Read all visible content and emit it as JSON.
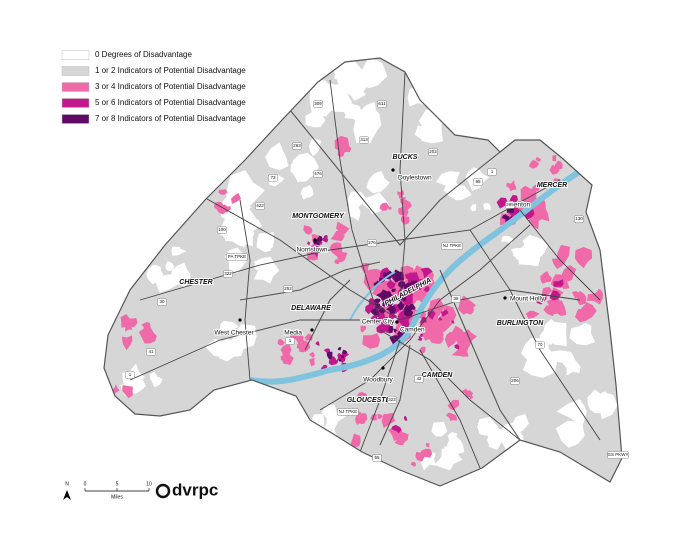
{
  "legend": [
    {
      "label": "0 Degrees of Disadvantage",
      "color": "#ffffff"
    },
    {
      "label": "1 or 2 Indicators of Potential Disadvantage",
      "color": "#d6d6d6"
    },
    {
      "label": "3 or 4 Indicators of Potential Disadvantage",
      "color": "#f06aa9"
    },
    {
      "label": "5 or 6 Indicators of Potential Disadvantage",
      "color": "#c2188c"
    },
    {
      "label": "7 or 8 Indicators of Potential Disadvantage",
      "color": "#5e0a66"
    }
  ],
  "counties": [
    "BUCKS",
    "MERCER",
    "MONTGOMERY",
    "CHESTER",
    "DELAWARE",
    "PHILADELPHIA",
    "BURLINGTON",
    "CAMDEN",
    "GLOUCESTER"
  ],
  "places": [
    "Doylestown",
    "Trenton",
    "Norristown",
    "West Chester",
    "Media",
    "Center City",
    "Camden",
    "Mount Holly",
    "Woodbury"
  ],
  "roads": [
    "309",
    "611",
    "313",
    "202",
    "263",
    "476",
    "73",
    "422",
    "100",
    "PA TPKE",
    "322",
    "30",
    "1",
    "252",
    "276",
    "95",
    "1",
    "295",
    "130",
    "NJ TPKE",
    "38",
    "70",
    "206",
    "42",
    "55",
    "322",
    "NJ TPKE",
    "GS PKWY",
    "41",
    "1"
  ],
  "scale": {
    "ticks": [
      0,
      5,
      10
    ],
    "unit": "Miles"
  },
  "north": "N",
  "logo": "dvrpc"
}
